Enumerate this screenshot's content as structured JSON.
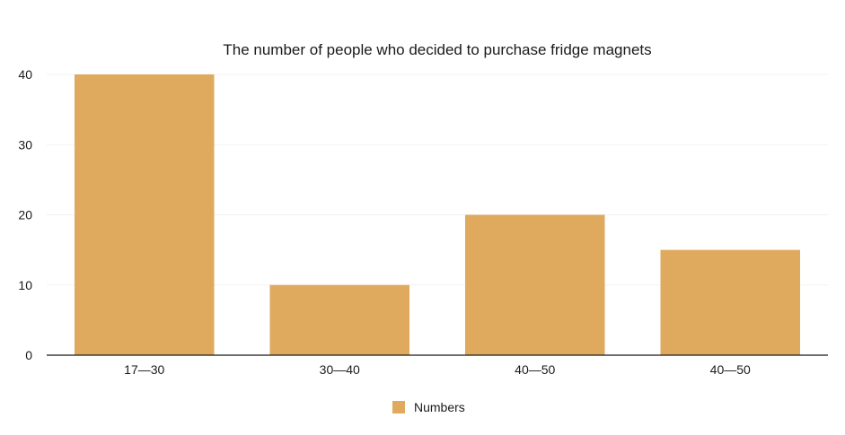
{
  "chart_data": {
    "type": "bar",
    "title": "The number of people who decided to purchase fridge magnets",
    "categories": [
      "17—30",
      "30—40",
      "40—50",
      "40—50"
    ],
    "series": [
      {
        "name": "Numbers",
        "values": [
          40,
          10,
          20,
          15
        ],
        "color": "#DFAA5E"
      }
    ],
    "y_ticks": [
      "0",
      "10",
      "20",
      "30",
      "40"
    ],
    "ylim": [
      0,
      40
    ],
    "grid": true,
    "legend_position": "bottom-center",
    "axis_color": "#1a1a1a",
    "grid_color": "#f2f2f2"
  }
}
